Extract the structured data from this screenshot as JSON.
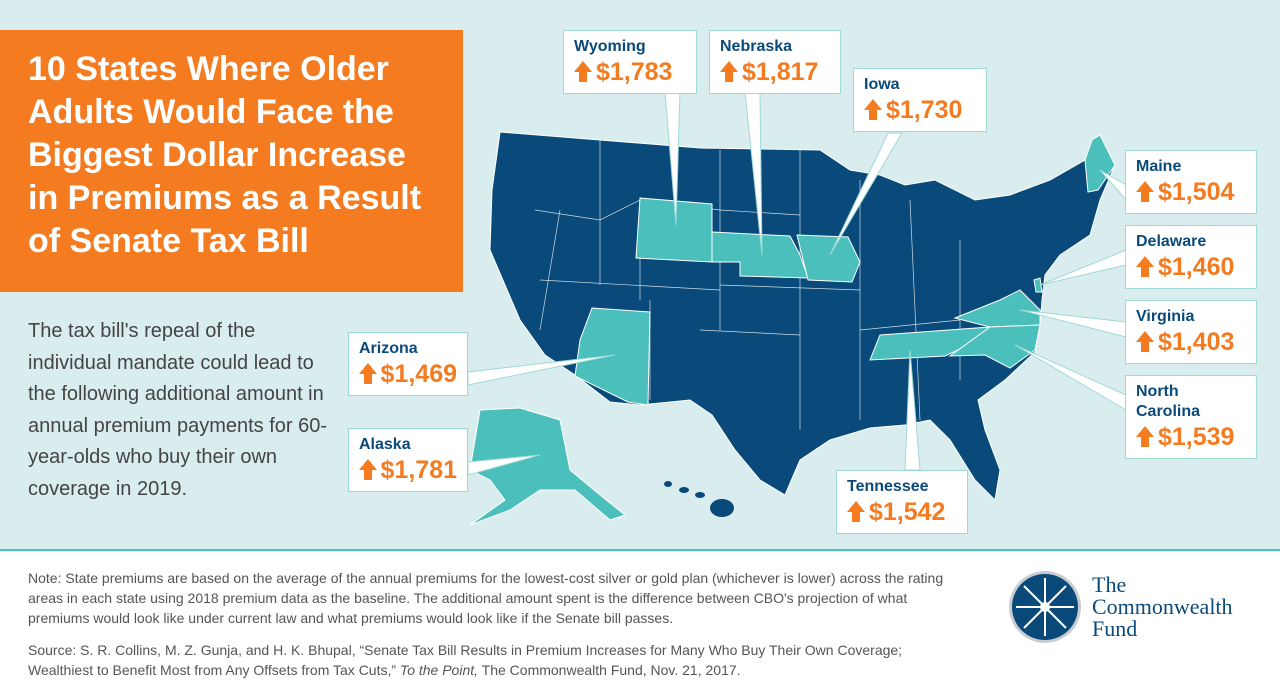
{
  "title": "10 States Where Older Adults Would Face the Biggest Dollar Increase in Premiums as a Result of Senate Tax Bill",
  "description": "The tax bill's repeal of the individual mandate could lead to the following additional amount in annual premium payments for 60-year-olds who buy their own coverage in 2019.",
  "states": [
    {
      "name": "Wyoming",
      "value": "$1,783"
    },
    {
      "name": "Nebraska",
      "value": "$1,817"
    },
    {
      "name": "Iowa",
      "value": "$1,730"
    },
    {
      "name": "Maine",
      "value": "$1,504"
    },
    {
      "name": "Delaware",
      "value": "$1,460"
    },
    {
      "name": "Virginia",
      "value": "$1,403"
    },
    {
      "name": "North Carolina",
      "value": "$1,539"
    },
    {
      "name": "Tennessee",
      "value": "$1,542"
    },
    {
      "name": "Arizona",
      "value": "$1,469"
    },
    {
      "name": "Alaska",
      "value": "$1,781"
    }
  ],
  "colors": {
    "orange": "#f47b20",
    "navy": "#0a4a7a",
    "teal": "#4bbfbb",
    "background": "#d9edee"
  },
  "note": "Note: State premiums are based on the average of the annual premiums for the lowest-cost silver or gold plan (whichever is lower) across the rating areas in each state using 2018 premium data as the baseline. The additional amount spent is the difference between CBO's projection of what premiums would look like under current law and what premiums would look like if the Senate bill passes.",
  "source_prefix": "Source: S. R. Collins, M. Z. Gunja, and H. K. Bhupal, “Senate Tax Bill Results in Premium Increases for Many Who Buy Their Own Coverage; Wealthiest to Benefit Most from Any Offsets from Tax Cuts,” ",
  "source_italic": "To the Point,",
  "source_suffix": " The Commonwealth Fund, Nov. 21, 2017.",
  "logo": {
    "line1": "The",
    "line2": "Commonwealth",
    "line3": "Fund"
  }
}
